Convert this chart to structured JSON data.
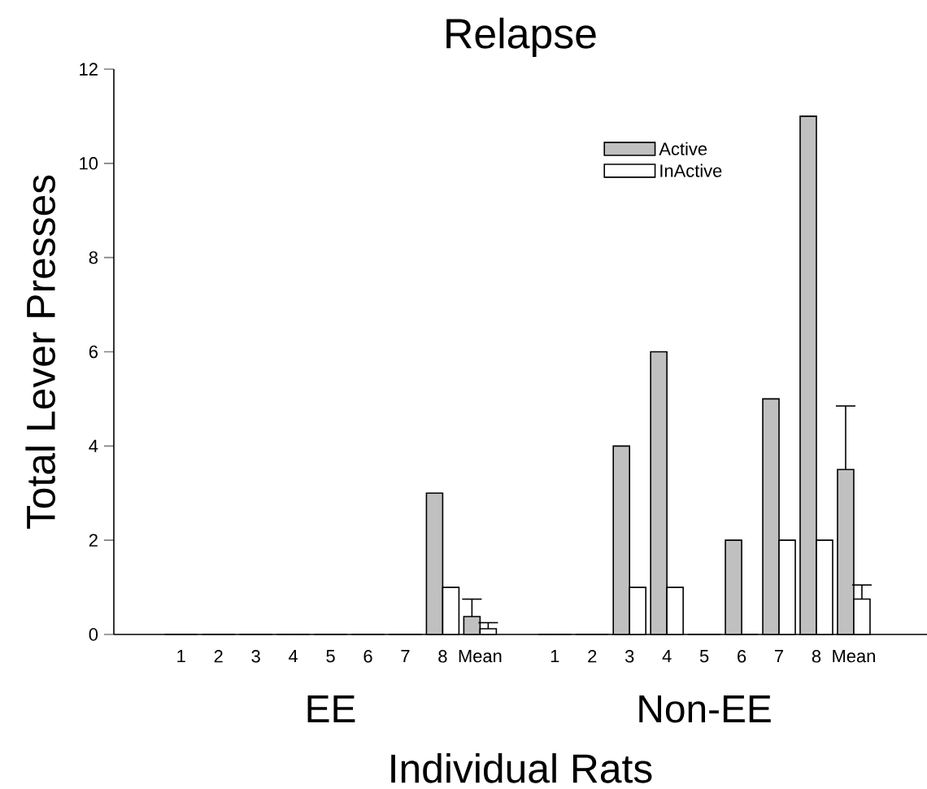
{
  "chart_data": {
    "type": "bar",
    "title": "Relapse",
    "xlabel": "Individual Rats",
    "ylabel": "Total Lever Presses",
    "categories": [
      "1",
      "2",
      "3",
      "4",
      "5",
      "6",
      "7",
      "8",
      "Mean",
      null,
      "1",
      "2",
      "3",
      "4",
      "5",
      "6",
      "7",
      "8",
      "Mean"
    ],
    "series": [
      {
        "name": "Active",
        "color": "#c0c0c0",
        "values": [
          0,
          0,
          0,
          0,
          0,
          0,
          0,
          3,
          0.38,
          null,
          0,
          0,
          4,
          6,
          0,
          2,
          5,
          11,
          3.5
        ],
        "errors": [
          null,
          null,
          null,
          null,
          null,
          null,
          null,
          null,
          [
            0.38,
            0.75
          ],
          null,
          null,
          null,
          null,
          null,
          null,
          null,
          null,
          null,
          [
            3.5,
            4.85
          ]
        ]
      },
      {
        "name": "InActive",
        "color": "#ffffff",
        "values": [
          0,
          0,
          0,
          0,
          0,
          0,
          0,
          1,
          0.12,
          null,
          0,
          0,
          1,
          1,
          0,
          0,
          2,
          2,
          0.75
        ],
        "errors": [
          null,
          null,
          null,
          null,
          null,
          null,
          null,
          null,
          [
            0.12,
            0.25
          ],
          null,
          null,
          null,
          null,
          null,
          null,
          null,
          null,
          null,
          [
            0.75,
            1.05
          ]
        ]
      }
    ],
    "ylim": [
      0,
      12
    ],
    "yticks": [
      0,
      2,
      4,
      6,
      8,
      10,
      12
    ],
    "annotations": [
      "EE",
      "Non-EE"
    ],
    "legend": "top right"
  }
}
